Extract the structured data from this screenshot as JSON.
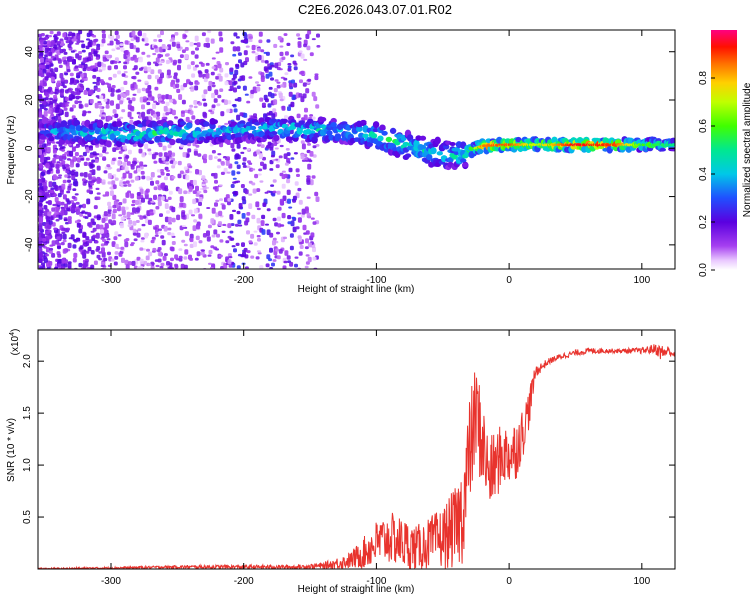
{
  "title": "C2E6.2026.043.07.01.R02",
  "chart_data": [
    {
      "type": "heatmap",
      "name": "spectrogram",
      "xlabel": "Height of straight line (km)",
      "ylabel": "Frequency (Hz)",
      "xlim": [
        -355,
        125
      ],
      "ylim": [
        -50,
        49
      ],
      "xticks": [
        -300,
        -200,
        -100,
        0,
        100
      ],
      "yticks": [
        -40,
        -20,
        0,
        20,
        40
      ],
      "xtick_labels": [
        "-300",
        "-200",
        "-100",
        "0",
        "100"
      ],
      "ytick_labels": [
        "-40",
        "-20",
        "0",
        "20",
        "40"
      ],
      "colorbar": {
        "label": "Normalized spectral amplitude",
        "range": [
          0.0,
          1.0
        ],
        "ticks": [
          0.0,
          0.2,
          0.4,
          0.6,
          0.8
        ],
        "tick_labels": [
          "0.0",
          "0.2",
          "0.4",
          "0.6",
          "0.8"
        ]
      },
      "ridge": {
        "x": [
          -350,
          -320,
          -290,
          -260,
          -230,
          -200,
          -180,
          -160,
          -140,
          -120,
          -100,
          -90,
          -80,
          -70,
          -60,
          -50,
          -40,
          -30,
          -20,
          0,
          20,
          50,
          80,
          100,
          125
        ],
        "y": [
          7,
          6.5,
          6,
          6.5,
          7,
          7.5,
          8,
          8,
          7.5,
          6.5,
          5,
          3.5,
          2,
          0,
          -1.5,
          -2.5,
          -3,
          -1,
          1,
          1.5,
          1.5,
          1.5,
          1.5,
          1.5,
          1.5
        ],
        "peak_amplitude": [
          0.35,
          0.45,
          0.5,
          0.5,
          0.45,
          0.4,
          0.45,
          0.45,
          0.45,
          0.45,
          0.45,
          0.5,
          0.5,
          0.45,
          0.45,
          0.45,
          0.45,
          0.55,
          0.85,
          0.9,
          0.7,
          0.95,
          0.9,
          0.6,
          0.5
        ]
      }
    },
    {
      "type": "line",
      "name": "snr",
      "xlabel": "Height of straight line (km)",
      "ylabel": "SNR (10 * v/v)",
      "multiplier_label": "(x10",
      "multiplier_exponent": "4",
      "multiplier_close": ")",
      "xlim": [
        -355,
        125
      ],
      "ylim": [
        0,
        2.3
      ],
      "xticks": [
        -300,
        -200,
        -100,
        0,
        100
      ],
      "yticks": [
        0.5,
        1.0,
        1.5,
        2.0
      ],
      "xtick_labels": [
        "-300",
        "-200",
        "-100",
        "0",
        "100"
      ],
      "ytick_labels": [
        "0.5",
        "1.0",
        "1.5",
        "2.0"
      ],
      "color": "#e8332d",
      "series": [
        {
          "name": "SNR",
          "x": [
            -355,
            -300,
            -250,
            -200,
            -160,
            -140,
            -120,
            -110,
            -100,
            -90,
            -80,
            -70,
            -60,
            -50,
            -40,
            -35,
            -30,
            -25,
            -20,
            -15,
            -10,
            -5,
            0,
            5,
            10,
            15,
            20,
            30,
            40,
            50,
            60,
            80,
            100,
            110,
            115,
            120,
            125
          ],
          "y": [
            0.0,
            0.01,
            0.02,
            0.02,
            0.02,
            0.03,
            0.08,
            0.15,
            0.25,
            0.3,
            0.25,
            0.2,
            0.25,
            0.3,
            0.4,
            0.55,
            1.1,
            1.5,
            1.2,
            0.9,
            1.0,
            1.1,
            1.1,
            1.15,
            1.3,
            1.55,
            1.9,
            2.0,
            2.05,
            2.08,
            2.1,
            2.1,
            2.1,
            2.12,
            2.08,
            2.1,
            2.06
          ],
          "noise_amplitude": [
            0.01,
            0.01,
            0.015,
            0.02,
            0.02,
            0.03,
            0.08,
            0.15,
            0.22,
            0.25,
            0.25,
            0.22,
            0.25,
            0.3,
            0.4,
            0.5,
            0.55,
            0.5,
            0.45,
            0.35,
            0.35,
            0.3,
            0.3,
            0.3,
            0.25,
            0.2,
            0.06,
            0.03,
            0.03,
            0.03,
            0.03,
            0.02,
            0.03,
            0.05,
            0.08,
            0.05,
            0.03
          ]
        }
      ]
    }
  ]
}
